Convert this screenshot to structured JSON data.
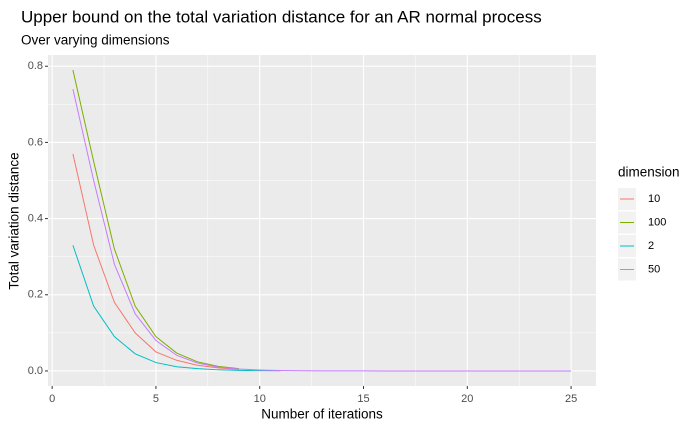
{
  "chart_data": {
    "type": "line",
    "title": "Upper bound on the total variation distance for an AR normal process",
    "subtitle": "Over varying dimensions",
    "x_label": "Number of iterations",
    "y_label": "Total variation distance",
    "legend_title": "dimension",
    "x": [
      1,
      2,
      3,
      4,
      5,
      6,
      7,
      8,
      9,
      10,
      11,
      12,
      13,
      14,
      15,
      16,
      17,
      18,
      19,
      20,
      21,
      22,
      23,
      24,
      25
    ],
    "series": [
      {
        "name": "10",
        "color": "#F8766D",
        "values": [
          0.57,
          0.33,
          0.18,
          0.1,
          0.05,
          0.028,
          0.015,
          0.008,
          0.004,
          null,
          null,
          null,
          null,
          null,
          null,
          null,
          null,
          null,
          null,
          null,
          null,
          null,
          null,
          null,
          null
        ]
      },
      {
        "name": "100",
        "color": "#7CAE00",
        "values": [
          0.79,
          0.55,
          0.32,
          0.17,
          0.09,
          0.047,
          0.024,
          0.012,
          0.006,
          null,
          null,
          null,
          null,
          null,
          null,
          null,
          null,
          null,
          null,
          null,
          null,
          null,
          null,
          null,
          null
        ]
      },
      {
        "name": "2",
        "color": "#00BFC4",
        "values": [
          0.33,
          0.17,
          0.09,
          0.045,
          0.022,
          0.011,
          0.006,
          0.003,
          0.0015,
          0.0008,
          0.0004,
          null,
          null,
          null,
          null,
          null,
          null,
          null,
          null,
          null,
          null,
          null,
          null,
          null,
          null
        ]
      },
      {
        "name": "50",
        "color": "#C77CFF",
        "values": [
          0.74,
          0.5,
          0.28,
          0.15,
          0.08,
          0.041,
          0.021,
          0.01,
          0.005,
          0.0025,
          0.0012,
          0.0006,
          0.0003,
          0.0002,
          0.0001,
          0,
          0,
          0,
          0,
          0,
          0,
          0,
          0,
          0,
          0
        ]
      }
    ],
    "xlim": [
      -0.2,
      26.2
    ],
    "xticks": [
      0,
      5,
      10,
      15,
      20,
      25
    ],
    "ylim": [
      -0.0395,
      0.8295
    ],
    "yticks": [
      {
        "value": 0,
        "label": "0.0"
      },
      0.2,
      0.4,
      0.6,
      0.8
    ],
    "x_minor_ticks": [
      2.5,
      7.5,
      12.5,
      17.5,
      22.5
    ],
    "y_minor_ticks": [
      0.1,
      0.3,
      0.5,
      0.7
    ],
    "grid": true
  }
}
